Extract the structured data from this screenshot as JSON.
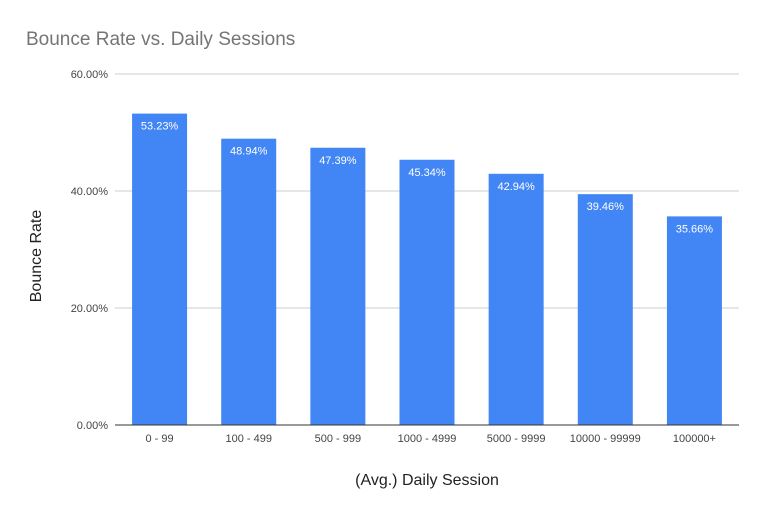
{
  "chart_data": {
    "type": "bar",
    "title": "Bounce Rate vs. Daily Sessions",
    "xlabel": "(Avg.) Daily Session",
    "ylabel": "Bounce Rate",
    "categories": [
      "0 - 99",
      "100 - 499",
      "500 - 999",
      "1000 - 4999",
      "5000 - 9999",
      "10000 - 99999",
      "100000+"
    ],
    "values": [
      53.23,
      48.94,
      47.39,
      45.34,
      42.94,
      39.46,
      35.66
    ],
    "value_labels": [
      "53.23%",
      "48.94%",
      "47.39%",
      "45.34%",
      "42.94%",
      "39.46%",
      "35.66%"
    ],
    "ylim": [
      0,
      60
    ],
    "yticks": [
      0,
      20,
      40,
      60
    ],
    "ytick_labels": [
      "0.00%",
      "20.00%",
      "40.00%",
      "60.00%"
    ],
    "grid": true,
    "legend": "none",
    "colors": {
      "bar": "#4285f4",
      "grid": "#cccccc",
      "baseline": "#333333"
    }
  }
}
